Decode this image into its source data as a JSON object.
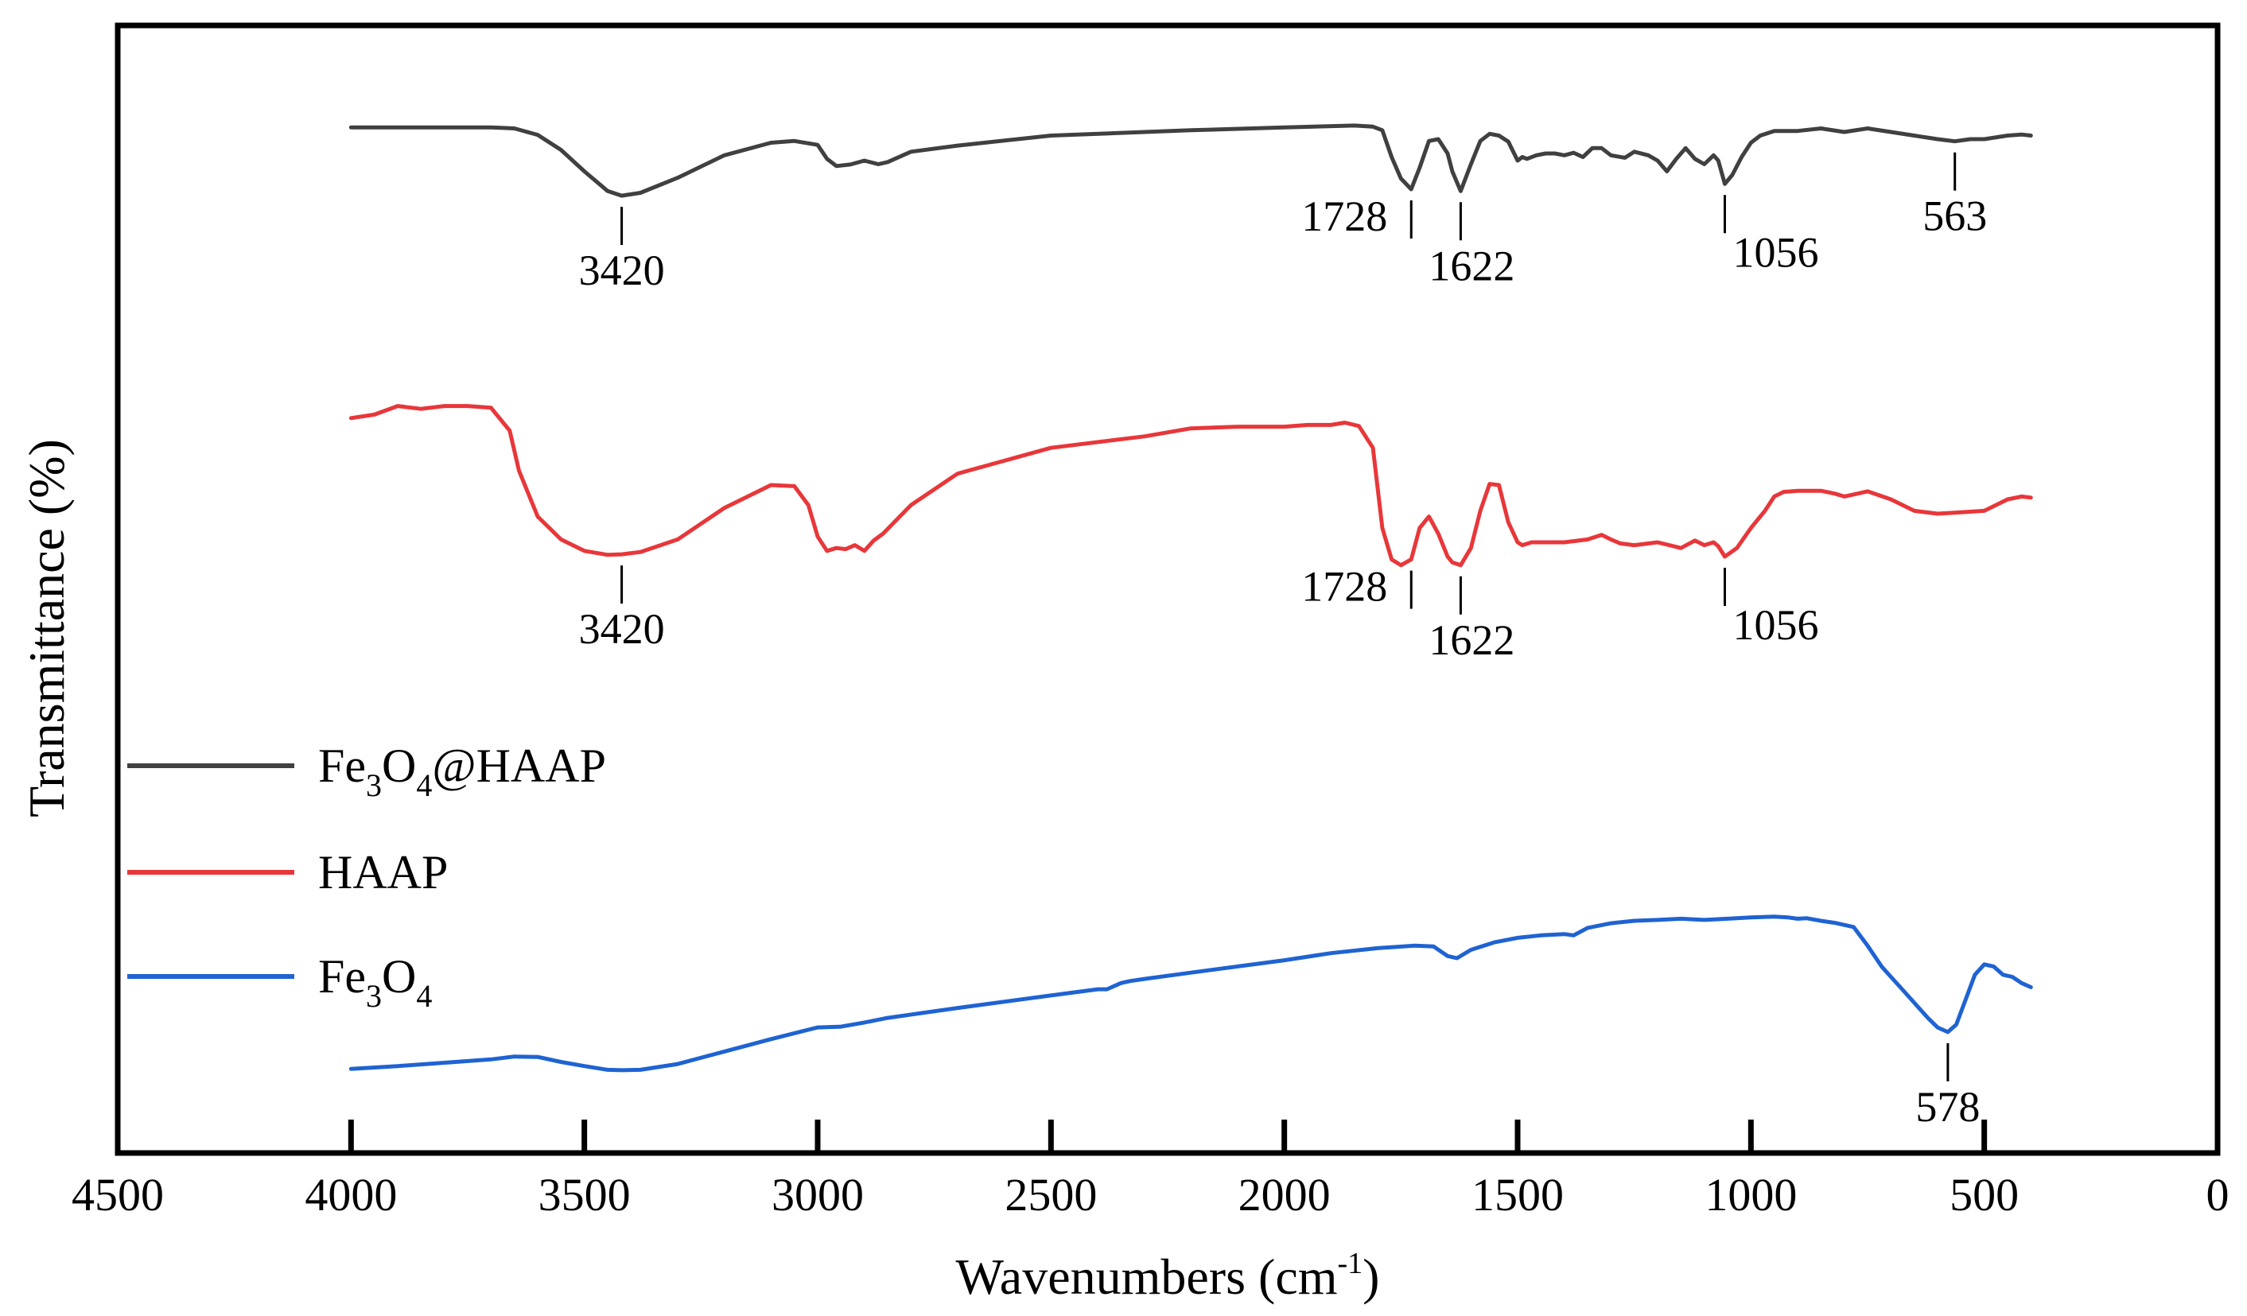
{
  "chart_data": {
    "type": "line",
    "title": "",
    "xlabel": "Wavenumbers (cm",
    "xlabel_sup": "-1",
    "xlabel_end": ")",
    "ylabel": "Transmittance (%)",
    "xlim": [
      4500,
      0
    ],
    "ylim": [
      0,
      100
    ],
    "x_ticks": [
      4500,
      4000,
      3500,
      3000,
      2500,
      2000,
      1500,
      1000,
      500,
      0
    ],
    "x_tick_labels": [
      "4500",
      "4000",
      "3500",
      "3000",
      "2500",
      "2000",
      "1500",
      "1000",
      "500",
      "0"
    ],
    "grid": false,
    "legend_position": "left-middle",
    "series": [
      {
        "name": "Fe3O4@HAAP",
        "legend": {
          "base1": "Fe",
          "sub1": "3",
          "base2": "O",
          "sub2": "4",
          "base3": "@HAAP"
        },
        "color": "#404040",
        "x": [
          4000,
          3800,
          3700,
          3650,
          3600,
          3550,
          3500,
          3450,
          3420,
          3380,
          3300,
          3200,
          3100,
          3050,
          3000,
          2980,
          2960,
          2930,
          2900,
          2870,
          2850,
          2800,
          2700,
          2500,
          2200,
          2000,
          1850,
          1810,
          1790,
          1770,
          1750,
          1728,
          1710,
          1690,
          1670,
          1650,
          1640,
          1622,
          1600,
          1580,
          1560,
          1540,
          1520,
          1500,
          1490,
          1480,
          1460,
          1440,
          1420,
          1400,
          1380,
          1360,
          1340,
          1320,
          1300,
          1270,
          1250,
          1220,
          1200,
          1180,
          1160,
          1140,
          1120,
          1100,
          1080,
          1070,
          1056,
          1040,
          1020,
          1000,
          980,
          950,
          900,
          850,
          800,
          750,
          700,
          650,
          600,
          563,
          530,
          500,
          450,
          420,
          400
        ],
        "y": [
          93.3,
          93.3,
          93.3,
          93.0,
          91.2,
          87.0,
          81.0,
          75.5,
          74.2,
          75.0,
          79.2,
          85.5,
          89.0,
          89.5,
          88.4,
          84.5,
          82.5,
          82.9,
          84.0,
          83.0,
          83.6,
          86.5,
          88.2,
          91.0,
          92.5,
          93.3,
          93.8,
          93.5,
          92.5,
          85.0,
          79.0,
          76.0,
          82.0,
          89.5,
          90.0,
          86.0,
          81.0,
          75.5,
          83.0,
          89.5,
          91.5,
          91.0,
          89.3,
          84.0,
          85.0,
          84.5,
          85.5,
          86.0,
          86.0,
          85.5,
          86.2,
          85.0,
          87.5,
          87.5,
          85.5,
          84.8,
          86.5,
          85.5,
          84.0,
          81.0,
          84.5,
          87.5,
          84.5,
          83.0,
          85.5,
          84.0,
          77.5,
          80.0,
          85.0,
          89.0,
          91.0,
          92.3,
          92.3,
          93.0,
          92.0,
          93.0,
          92.0,
          91.0,
          90.0,
          89.4,
          90.0,
          90.0,
          91.0,
          91.3,
          91.0
        ],
        "peaks": [
          3420,
          1728,
          1622,
          1056,
          563
        ],
        "peak_labels": [
          "3420",
          "1728",
          "1622",
          "1056",
          "563"
        ]
      },
      {
        "name": "HAAP",
        "legend": {
          "base1": "HAAP"
        },
        "color": "#e8373a",
        "x": [
          4000,
          3950,
          3900,
          3850,
          3800,
          3750,
          3700,
          3660,
          3640,
          3600,
          3550,
          3500,
          3450,
          3420,
          3380,
          3300,
          3200,
          3100,
          3050,
          3020,
          3000,
          2980,
          2960,
          2940,
          2920,
          2900,
          2880,
          2860,
          2800,
          2700,
          2500,
          2300,
          2200,
          2100,
          2000,
          1950,
          1900,
          1870,
          1840,
          1810,
          1790,
          1770,
          1750,
          1728,
          1710,
          1690,
          1670,
          1650,
          1640,
          1622,
          1600,
          1580,
          1560,
          1540,
          1520,
          1500,
          1490,
          1470,
          1440,
          1400,
          1350,
          1320,
          1300,
          1280,
          1250,
          1200,
          1150,
          1120,
          1100,
          1080,
          1070,
          1056,
          1030,
          1000,
          970,
          950,
          930,
          900,
          850,
          820,
          800,
          750,
          700,
          650,
          600,
          560,
          500,
          450,
          420,
          400
        ],
        "y": [
          74.2,
          74.8,
          76.3,
          75.8,
          76.3,
          76.3,
          76.0,
          72.0,
          65.0,
          57.0,
          53.0,
          51.0,
          50.3,
          50.4,
          50.8,
          53.0,
          58.5,
          62.5,
          62.3,
          59.0,
          53.5,
          51.0,
          51.5,
          51.3,
          52.0,
          51.0,
          52.8,
          54.0,
          59.0,
          64.5,
          69.0,
          71.0,
          72.4,
          72.7,
          72.7,
          73.0,
          73.0,
          73.4,
          72.8,
          69.0,
          55.0,
          49.5,
          48.5,
          49.5,
          55.0,
          57.0,
          54.0,
          50.0,
          49.0,
          48.5,
          51.5,
          58.0,
          62.7,
          62.5,
          56.0,
          52.5,
          52.0,
          52.5,
          52.5,
          52.5,
          53.0,
          53.8,
          53.0,
          52.3,
          52.0,
          52.5,
          51.5,
          52.8,
          52.0,
          52.5,
          51.8,
          50.0,
          51.5,
          55.0,
          58.0,
          60.5,
          61.3,
          61.5,
          61.5,
          61.0,
          60.5,
          61.4,
          60.0,
          58.0,
          57.5,
          57.7,
          58.0,
          60.0,
          60.5,
          60.3
        ],
        "peaks": [
          3420,
          1728,
          1622,
          1056
        ],
        "peak_labels": [
          "3420",
          "1728",
          "1622",
          "1056"
        ]
      },
      {
        "name": "Fe3O4",
        "legend": {
          "base1": "Fe",
          "sub1": "3",
          "base2": "O",
          "sub2": "4"
        },
        "color": "#1f63d2",
        "x": [
          4000,
          3900,
          3800,
          3700,
          3650,
          3600,
          3550,
          3500,
          3450,
          3420,
          3380,
          3300,
          3200,
          3100,
          3000,
          2950,
          2900,
          2850,
          2700,
          2500,
          2400,
          2380,
          2350,
          2330,
          2300,
          2200,
          2000,
          1900,
          1800,
          1720,
          1680,
          1650,
          1630,
          1600,
          1550,
          1500,
          1450,
          1400,
          1380,
          1350,
          1300,
          1250,
          1200,
          1150,
          1100,
          1050,
          1000,
          950,
          920,
          900,
          880,
          850,
          820,
          780,
          750,
          720,
          700,
          680,
          660,
          640,
          620,
          600,
          578,
          560,
          540,
          520,
          500,
          480,
          460,
          440,
          420,
          400
        ],
        "y": [
          5.3,
          6.0,
          6.8,
          7.6,
          8.3,
          8.2,
          7.0,
          6.0,
          5.1,
          5.0,
          5.1,
          6.5,
          9.5,
          12.5,
          15.3,
          15.5,
          16.5,
          17.6,
          20.0,
          23.0,
          24.5,
          24.5,
          26.0,
          26.5,
          27.0,
          28.5,
          31.5,
          33.2,
          34.4,
          35.0,
          34.8,
          32.5,
          32.0,
          34.0,
          35.8,
          36.9,
          37.5,
          37.8,
          37.5,
          39.3,
          40.4,
          41.0,
          41.2,
          41.5,
          41.2,
          41.5,
          41.8,
          42.0,
          41.8,
          41.5,
          41.6,
          41.0,
          40.5,
          39.5,
          35.0,
          30.0,
          27.5,
          25.0,
          22.5,
          20.0,
          17.5,
          15.3,
          14.2,
          16.0,
          22.0,
          28.0,
          30.5,
          30.0,
          28.0,
          27.5,
          26.0,
          25.0
        ],
        "peaks": [
          578
        ],
        "peak_labels": [
          "578"
        ]
      }
    ]
  }
}
